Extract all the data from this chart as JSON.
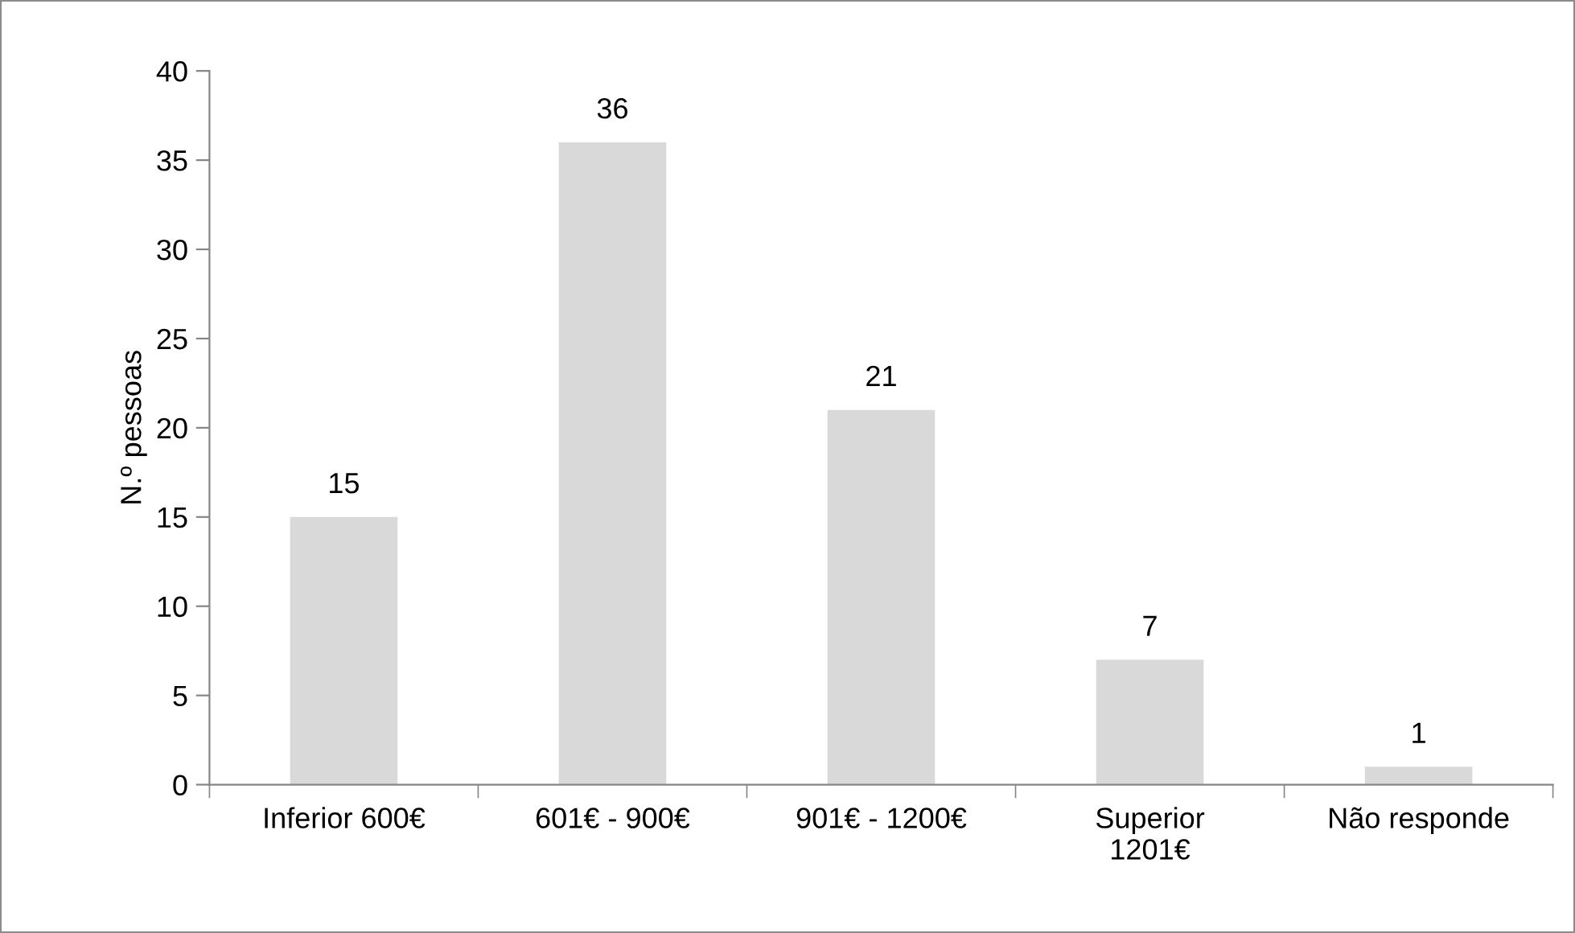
{
  "chart_data": {
    "type": "bar",
    "ylabel": "N.º pessoas",
    "categories": [
      "Inferior 600€",
      "601€ - 900€",
      "901€ - 1200€",
      "Superior\n1201€",
      "Não responde"
    ],
    "values": [
      15,
      36,
      21,
      7,
      1
    ],
    "color": "#d9d9d9",
    "ylim": [
      0,
      40
    ],
    "yticks": [
      0,
      5,
      10,
      15,
      20,
      25,
      30,
      35,
      40
    ],
    "grid": false,
    "data_labels": true,
    "legend": false
  }
}
